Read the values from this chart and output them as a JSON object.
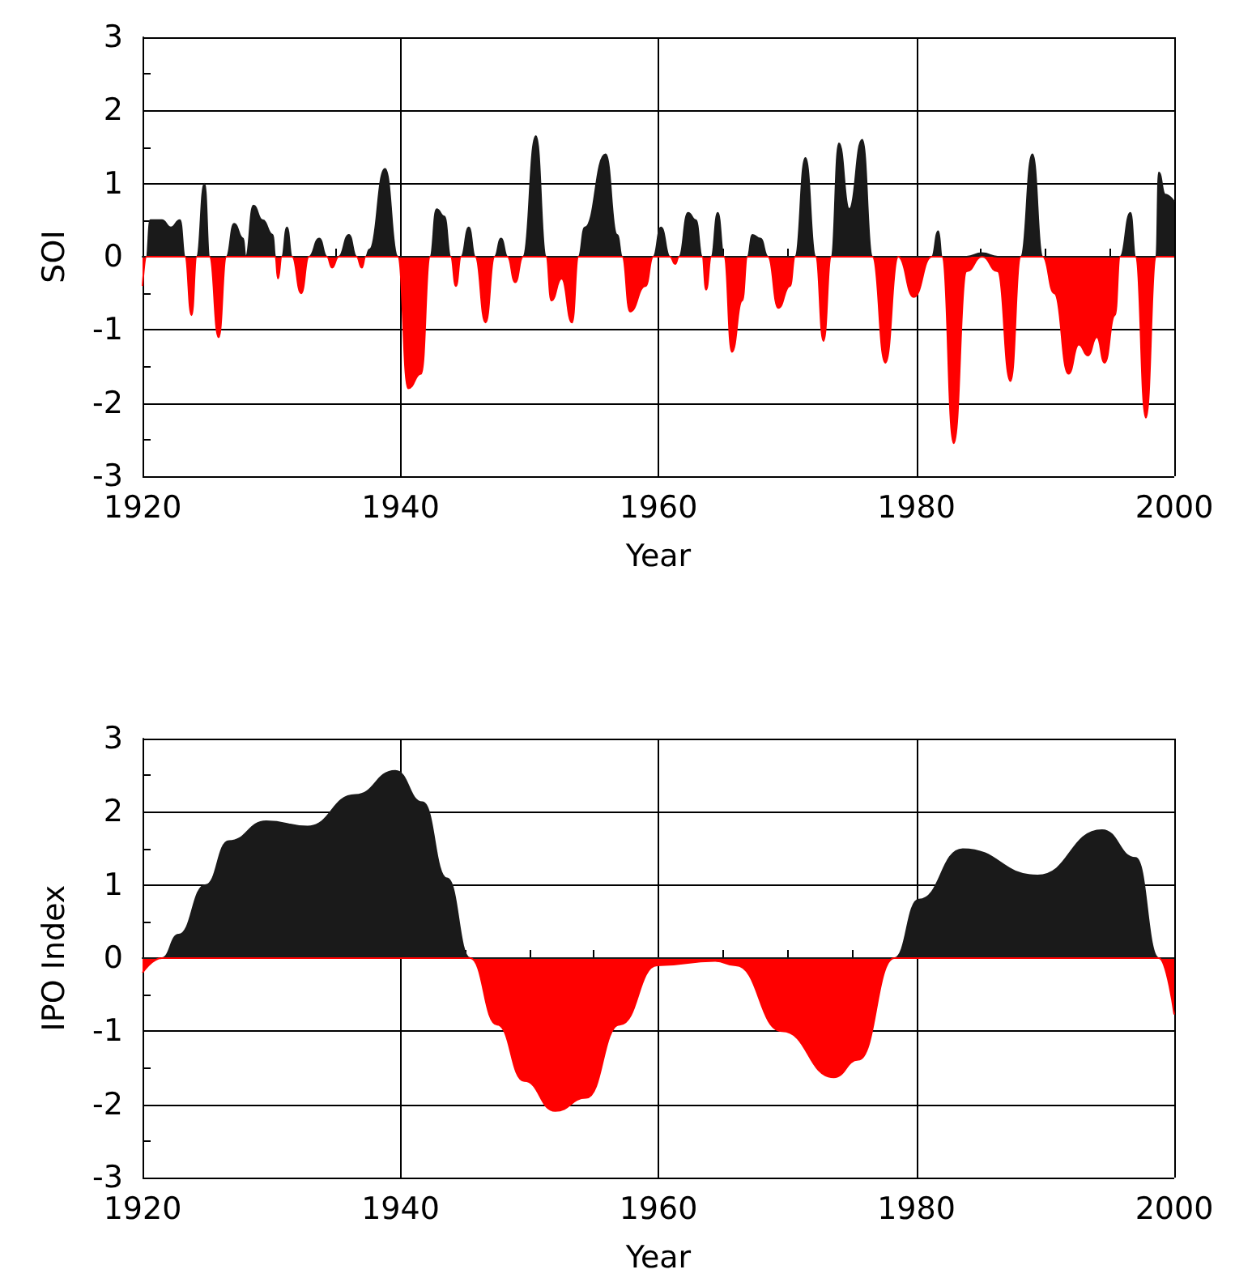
{
  "chart_data": [
    {
      "type": "area",
      "xlabel": "Year",
      "ylabel": "SOI",
      "xlim": [
        1920,
        2000
      ],
      "xticks": [
        1920,
        1940,
        1960,
        1980,
        2000
      ],
      "ylim": [
        -3,
        3
      ],
      "yticks": [
        -3,
        -2,
        -1,
        0,
        1,
        2,
        3
      ],
      "grid": true,
      "x": [
        1920,
        1920.3,
        1920.6,
        1921.5,
        1922.2,
        1922.9,
        1923.3,
        1923.8,
        1924.2,
        1924.8,
        1925.2,
        1925.9,
        1926.5,
        1927.1,
        1927.8,
        1928,
        1928.6,
        1929.3,
        1930.1,
        1930.3,
        1930.5,
        1930.8,
        1931.2,
        1931.6,
        1932.3,
        1932.9,
        1933.7,
        1934.3,
        1934.7,
        1935.2,
        1936,
        1936.6,
        1937,
        1937.3,
        1937.6,
        1938.8,
        1939.8,
        1940.6,
        1941.6,
        1942.3,
        1942.8,
        1943.4,
        1943.9,
        1944.3,
        1944.7,
        1945.3,
        1945.8,
        1946.6,
        1947.3,
        1947.8,
        1948.3,
        1948.9,
        1949.5,
        1950.5,
        1951.3,
        1951.7,
        1952.5,
        1953.3,
        1953.8,
        1954.3,
        1955.9,
        1956.8,
        1957.2,
        1957.8,
        1959,
        1959.6,
        1960.2,
        1960.9,
        1961.3,
        1961.6,
        1962.3,
        1962.9,
        1963.4,
        1963.7,
        1964.1,
        1964.6,
        1965.1,
        1965.7,
        1966.5,
        1966.9,
        1967.3,
        1967.9,
        1968.5,
        1969.3,
        1970.2,
        1970.6,
        1971.4,
        1972.2,
        1972.8,
        1973.4,
        1974,
        1974.8,
        1975.8,
        1976.6,
        1977.6,
        1978.6,
        1979.8,
        1981.2,
        1981.7,
        1982,
        1982.9,
        1983.9,
        1985.1,
        1986.3,
        1987.3,
        1988.1,
        1989,
        1989.8,
        1990.7,
        1991.8,
        1992.6,
        1993.3,
        1994,
        1994.6,
        1995.4,
        1995.8,
        1996.6,
        1997,
        1997.8,
        1998.6,
        1998.8,
        1999.3,
        2000
      ],
      "series": [
        {
          "color": "#1a1a1a",
          "values": [
            0,
            0,
            0.5,
            0.5,
            0.4,
            0.5,
            0,
            0,
            0,
            1.0,
            0,
            0,
            0,
            0.45,
            0.25,
            0,
            0.7,
            0.5,
            0.3,
            0,
            0,
            0,
            0.4,
            0,
            0,
            0,
            0.25,
            0,
            0,
            0,
            0.3,
            0,
            0,
            0,
            0.1,
            1.2,
            0,
            0,
            0,
            0,
            0.65,
            0.55,
            0,
            0,
            0,
            0.4,
            0,
            0,
            0,
            0.25,
            0,
            0,
            0,
            1.65,
            0,
            0,
            0,
            0,
            0,
            0.4,
            1.4,
            0.3,
            0,
            0,
            0,
            0,
            0.4,
            0,
            0,
            0,
            0.6,
            0.5,
            0,
            0,
            0,
            0.6,
            0,
            0,
            0,
            0,
            0.3,
            0.25,
            0,
            0,
            0,
            0,
            1.35,
            0,
            0,
            0,
            1.55,
            0.65,
            1.6,
            0,
            0,
            0,
            0,
            0,
            0.35,
            0,
            0,
            0,
            0.05,
            0,
            0,
            0,
            1.4,
            0,
            0,
            0,
            0,
            0,
            0,
            0,
            0,
            0,
            0.6,
            0,
            0,
            0,
            1.15,
            0.85,
            0.75
          ]
        },
        {
          "color": "#ff0000",
          "values": [
            -0.4,
            0,
            0,
            0,
            0,
            0,
            0,
            -0.8,
            0,
            0,
            0,
            -1.1,
            0,
            0,
            0,
            0,
            0,
            0,
            0,
            0,
            -0.3,
            0,
            0,
            0,
            -0.5,
            0,
            0,
            0,
            -0.15,
            0,
            0,
            0,
            -0.15,
            0,
            0,
            0,
            0,
            -1.8,
            -1.6,
            0,
            0,
            0,
            0,
            -0.4,
            0,
            0,
            0,
            -0.9,
            0,
            0,
            0,
            -0.35,
            0,
            0,
            0,
            -0.6,
            -0.3,
            -0.9,
            0,
            0,
            0,
            0,
            0,
            -0.75,
            -0.4,
            0,
            0,
            0,
            -0.1,
            0,
            0,
            0,
            0,
            -0.45,
            0,
            0,
            0,
            -1.3,
            -0.6,
            0,
            0,
            0,
            0,
            -0.7,
            -0.4,
            0,
            0,
            0,
            -1.15,
            0,
            0,
            0,
            0,
            0,
            -1.45,
            0,
            -0.55,
            0,
            0,
            0,
            -2.55,
            -0.2,
            0,
            -0.2,
            -1.7,
            0,
            0,
            0,
            -0.5,
            -1.6,
            -1.2,
            -1.35,
            -1.1,
            -1.45,
            -0.8,
            0,
            0,
            0,
            -2.2,
            0,
            0,
            0,
            0
          ]
        }
      ]
    },
    {
      "type": "area",
      "xlabel": "Year",
      "ylabel": "IPO Index",
      "xlim": [
        1920,
        2000
      ],
      "xticks": [
        1920,
        1940,
        1960,
        1980,
        2000
      ],
      "ylim": [
        -3,
        3
      ],
      "yticks": [
        -3,
        -2,
        -1,
        0,
        1,
        2,
        3
      ],
      "grid": true,
      "x": [
        1920,
        1921.5,
        1922.8,
        1924.9,
        1926.7,
        1929.6,
        1932.8,
        1936.5,
        1939.6,
        1941.7,
        1943.6,
        1945.4,
        1947.5,
        1949.6,
        1952,
        1954.4,
        1957,
        1959.9,
        1964.4,
        1966,
        1969.6,
        1973.6,
        1975.5,
        1978.3,
        1980.2,
        1983.6,
        1989.4,
        1994.4,
        1997,
        1998.8,
        2000
      ],
      "series": [
        {
          "color": "#1a1a1a",
          "values": [
            0,
            0,
            0.32,
            1.0,
            1.6,
            1.87,
            1.8,
            2.23,
            2.56,
            2.13,
            1.09,
            0,
            0,
            0,
            0,
            0,
            0,
            0,
            0,
            0,
            0,
            0,
            0,
            0,
            0.8,
            1.49,
            1.13,
            1.75,
            1.37,
            0,
            0
          ]
        },
        {
          "color": "#ff0000",
          "values": [
            -0.2,
            0,
            0,
            0,
            0,
            0,
            0,
            0,
            0,
            0,
            0,
            0,
            -0.91,
            -1.68,
            -2.09,
            -1.91,
            -0.91,
            -0.1,
            -0.04,
            -0.1,
            -1.0,
            -1.63,
            -1.39,
            0,
            0,
            0,
            0,
            0,
            0,
            0,
            -0.77
          ]
        }
      ]
    }
  ]
}
